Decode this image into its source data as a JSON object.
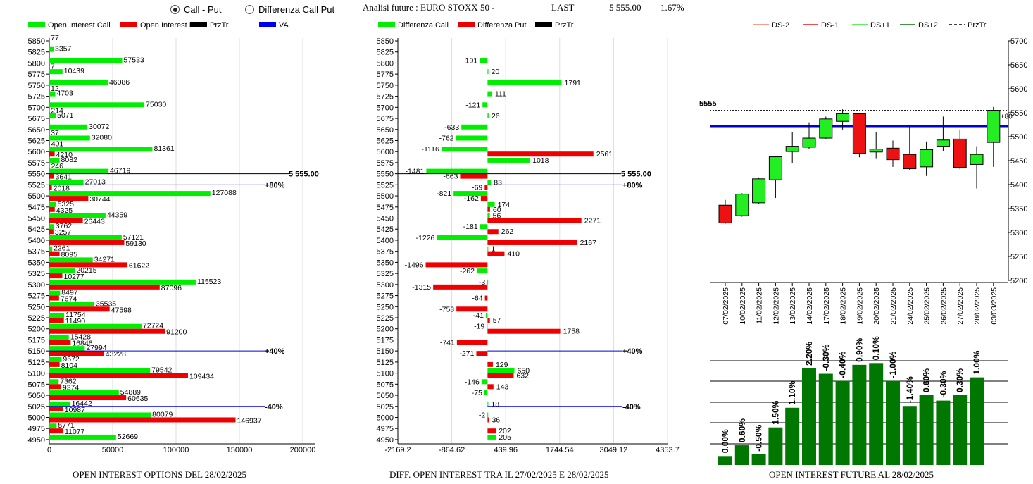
{
  "header": {
    "radio_call_put": "Call - Put",
    "radio_diff": "Differenza Call Put",
    "title": "Analisi future : EURO STOXX 50 -",
    "last_label": "LAST",
    "last_value": "5 555.00",
    "last_change": "1.67%"
  },
  "colors": {
    "call": "#00ee00",
    "put": "#ee0000",
    "przt": "#000000",
    "va": "#0000ee",
    "candle_up": "#22ee22",
    "candle_down": "#ee1111",
    "oi_bar": "#007700"
  },
  "chart_data": [
    {
      "type": "bar",
      "footer": "OPEN INTEREST OPTIONS DEL 28/02/2025",
      "legend": [
        "Open Interest Call",
        "Open Interest Put",
        "PrzTr",
        "VA"
      ],
      "strikes": [
        "5850",
        "5825",
        "5800",
        "5775",
        "5750",
        "5725",
        "5700",
        "5675",
        "5650",
        "5625",
        "5600",
        "5575",
        "5550",
        "5525",
        "5500",
        "5475",
        "5450",
        "5425",
        "5400",
        "5375",
        "5350",
        "5325",
        "5300",
        "5275",
        "5250",
        "5225",
        "5200",
        "5175",
        "5150",
        "5125",
        "5100",
        "5075",
        "5050",
        "5025",
        "5000",
        "4975",
        "4950"
      ],
      "series": [
        {
          "name": "Open Interest Call",
          "values": [
            77,
            3357,
            57533,
            10439,
            46086,
            4703,
            75030,
            5071,
            30072,
            32080,
            81361,
            8082,
            46719,
            27013,
            127088,
            5325,
            44359,
            3762,
            57121,
            2261,
            34271,
            20215,
            115523,
            8497,
            35535,
            11754,
            72724,
            15428,
            27994,
            9672,
            79542,
            7362,
            54889,
            16442,
            80079,
            5771,
            52669
          ]
        },
        {
          "name": "Open Interest Put",
          "values": [
            0,
            0,
            7,
            0,
            12,
            0,
            214,
            0,
            37,
            401,
            4210,
            246,
            3641,
            2018,
            30744,
            4325,
            26443,
            3257,
            59130,
            8095,
            61622,
            10277,
            87096,
            7674,
            47598,
            11490,
            91200,
            16846,
            43228,
            8104,
            109434,
            9374,
            60635,
            10987,
            146937,
            11077,
            0
          ]
        }
      ],
      "xticks": [
        "0",
        "50000",
        "100000",
        "150000",
        "200000"
      ],
      "xlim": [
        0,
        210000
      ],
      "price_line": {
        "strike": "5550",
        "label": "5 555.00"
      },
      "va_lines": [
        {
          "strike": "5525",
          "label": "+80%"
        },
        {
          "strike": "5150",
          "label": "+40%"
        },
        {
          "strike": "5025",
          "label": "-40%"
        }
      ]
    },
    {
      "type": "bar",
      "footer": "DIFF. OPEN INTEREST TRA IL 27/02/2025 E 28/02/2025",
      "legend": [
        "Differenza Call",
        "Differenza Put",
        "PrzTr"
      ],
      "strikes": [
        "5850",
        "5825",
        "5800",
        "5775",
        "5750",
        "5725",
        "5700",
        "5675",
        "5650",
        "5625",
        "5600",
        "5575",
        "5550",
        "5525",
        "5500",
        "5475",
        "5450",
        "5425",
        "5400",
        "5375",
        "5350",
        "5325",
        "5300",
        "5275",
        "5250",
        "5225",
        "5200",
        "5175",
        "5150",
        "5125",
        "5100",
        "5075",
        "5050",
        "5025",
        "5000",
        "4975",
        "4950"
      ],
      "series": [
        {
          "name": "Differenza Call",
          "values": [
            null,
            null,
            -191,
            20,
            1791,
            111,
            -121,
            26,
            -633,
            -762,
            -1116,
            1018,
            -1481,
            83,
            -821,
            174,
            56,
            -181,
            -1226,
            1,
            null,
            -262,
            -3,
            null,
            null,
            -41,
            -19,
            null,
            null,
            null,
            650,
            -146,
            -75,
            18,
            -2,
            null,
            205
          ]
        },
        {
          "name": "Differenza Put",
          "values": [
            null,
            null,
            null,
            null,
            null,
            null,
            null,
            null,
            null,
            null,
            2561,
            null,
            -663,
            -69,
            -162,
            60,
            2271,
            262,
            2167,
            410,
            -1496,
            null,
            -1315,
            -64,
            -753,
            57,
            1758,
            -741,
            -271,
            129,
            632,
            143,
            null,
            null,
            36,
            202,
            null
          ]
        }
      ],
      "xticks": [
        "-2169.2",
        "-864.62",
        "439.96",
        "1744.54",
        "3049.12",
        "4353.7"
      ],
      "xlim": [
        -2169.2,
        4353.7
      ],
      "price_line": {
        "strike": "5550",
        "label": "5 555.00"
      },
      "va_lines": [
        {
          "strike": "5525",
          "label": "+80%"
        },
        {
          "strike": "5150",
          "label": "+40%"
        },
        {
          "strike": "5025",
          "label": "-40%"
        }
      ]
    },
    {
      "type": "candlestick",
      "legend": [
        "DS-2",
        "DS-1",
        "DS+1",
        "DS+2",
        "PrzTr"
      ],
      "legend_colors": [
        "#f08060",
        "#ee1111",
        "#22ee22",
        "#007700",
        "#000000"
      ],
      "dates": [
        "07/02/2025",
        "10/02/2025",
        "11/02/2025",
        "12/02/2025",
        "13/02/2025",
        "14/02/2025",
        "17/02/2025",
        "18/02/2025",
        "19/02/2025",
        "20/02/2025",
        "21/02/2025",
        "24/02/2025",
        "25/02/2025",
        "26/02/2025",
        "27/02/2025",
        "28/02/2025",
        "03/03/2025"
      ],
      "candles": [
        {
          "open": 5357,
          "close": 5320,
          "high": 5368,
          "low": 5318
        },
        {
          "open": 5335,
          "close": 5380,
          "high": 5382,
          "low": 5333
        },
        {
          "open": 5362,
          "close": 5412,
          "high": 5415,
          "low": 5360
        },
        {
          "open": 5410,
          "close": 5458,
          "high": 5460,
          "low": 5372
        },
        {
          "open": 5469,
          "close": 5480,
          "high": 5510,
          "low": 5445
        },
        {
          "open": 5478,
          "close": 5497,
          "high": 5530,
          "low": 5475
        },
        {
          "open": 5497,
          "close": 5537,
          "high": 5542,
          "low": 5495
        },
        {
          "open": 5532,
          "close": 5548,
          "high": 5557,
          "low": 5515
        },
        {
          "open": 5548,
          "close": 5465,
          "high": 5550,
          "low": 5457
        },
        {
          "open": 5468,
          "close": 5474,
          "high": 5510,
          "low": 5455
        },
        {
          "open": 5476,
          "close": 5452,
          "high": 5492,
          "low": 5437
        },
        {
          "open": 5463,
          "close": 5433,
          "high": 5523,
          "low": 5430
        },
        {
          "open": 5437,
          "close": 5473,
          "high": 5490,
          "low": 5418
        },
        {
          "open": 5480,
          "close": 5493,
          "high": 5542,
          "low": 5470
        },
        {
          "open": 5495,
          "close": 5436,
          "high": 5515,
          "low": 5432
        },
        {
          "open": 5442,
          "close": 5463,
          "high": 5480,
          "low": 5392
        },
        {
          "open": 5488,
          "close": 5555,
          "high": 5562,
          "low": 5437
        }
      ],
      "yticks": [
        "5700",
        "5650",
        "5600",
        "5550",
        "5500",
        "5450",
        "5400",
        "5350",
        "5300",
        "5250",
        "5200"
      ],
      "ylim": [
        5200,
        5700
      ],
      "price_label": "5555",
      "price_value": 5555,
      "va_value": 5522,
      "last_marker": "+80"
    },
    {
      "type": "bar",
      "footer": "OPEN INTEREST FUTURE AL 28/02/2025",
      "categories": [
        "07/02/2025",
        "10/02/2025",
        "11/02/2025",
        "12/02/2025",
        "13/02/2025",
        "14/02/2025",
        "17/02/2025",
        "18/02/2025",
        "19/02/2025",
        "20/02/2025",
        "21/02/2025",
        "24/02/2025",
        "25/02/2025",
        "26/02/2025",
        "27/02/2025",
        "28/02/2025",
        "03/03/2025"
      ],
      "labels": [
        "0.00%",
        "0.60%",
        "-0.50%",
        "1.50%",
        "1.10%",
        "2.20%",
        "-0.30%",
        "-0.40%",
        "0.90%",
        "0.10%",
        "-1.00%",
        "-1.40%",
        "0.60%",
        "-0.30%",
        "0.30%",
        "1.00%"
      ],
      "values": [
        100.0,
        100.6,
        100.1,
        101.6,
        102.7,
        104.9,
        104.6,
        104.2,
        105.1,
        105.2,
        104.2,
        102.8,
        103.4,
        103.1,
        103.4,
        104.4
      ],
      "ylim": [
        99.5,
        106.0
      ]
    }
  ]
}
